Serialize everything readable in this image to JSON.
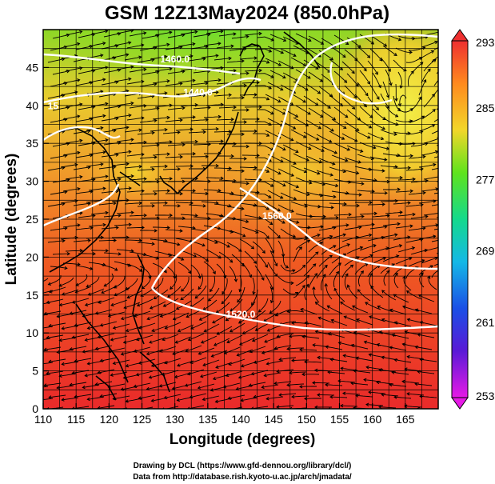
{
  "title": "GSM 12Z13May2024 (850.0hPa)",
  "x_axis": {
    "label": "Longitude (degrees)",
    "ticks": [
      "110",
      "115",
      "120",
      "125",
      "130",
      "135",
      "140",
      "145",
      "150",
      "155",
      "160",
      "165"
    ],
    "values": [
      110,
      115,
      120,
      125,
      130,
      135,
      140,
      145,
      150,
      155,
      160,
      165
    ],
    "range": [
      110,
      170
    ]
  },
  "y_axis": {
    "label": "Latitude  (degrees)",
    "ticks": [
      "0",
      "5",
      "10",
      "15",
      "20",
      "25",
      "30",
      "35",
      "40",
      "45"
    ],
    "values": [
      0,
      5,
      10,
      15,
      20,
      25,
      30,
      35,
      40,
      45
    ],
    "range": [
      0,
      50
    ]
  },
  "colorbar": {
    "labels": [
      "293",
      "285",
      "277",
      "269",
      "261",
      "253"
    ],
    "values": [
      293,
      285,
      277,
      269,
      261,
      253
    ],
    "range": [
      253,
      293
    ]
  },
  "contour_labels": [
    {
      "text": "1460.0",
      "lon": 130.0,
      "lat": 45.7
    },
    {
      "text": "1440.0",
      "lon": 133.5,
      "lat": 41.3
    },
    {
      "text": "1560.0",
      "lon": 145.5,
      "lat": 25.0
    },
    {
      "text": "1520.0",
      "lon": 140.0,
      "lat": 12.0
    },
    {
      "text": "15",
      "lon": 111.5,
      "lat": 39.5
    }
  ],
  "credits": {
    "line1": "Drawing by DCL (https://www.gfd-dennou.org/library/dcl/)",
    "line2": "Data from http://database.rish.kyoto-u.ac.jp/arch/jmadata/"
  }
}
